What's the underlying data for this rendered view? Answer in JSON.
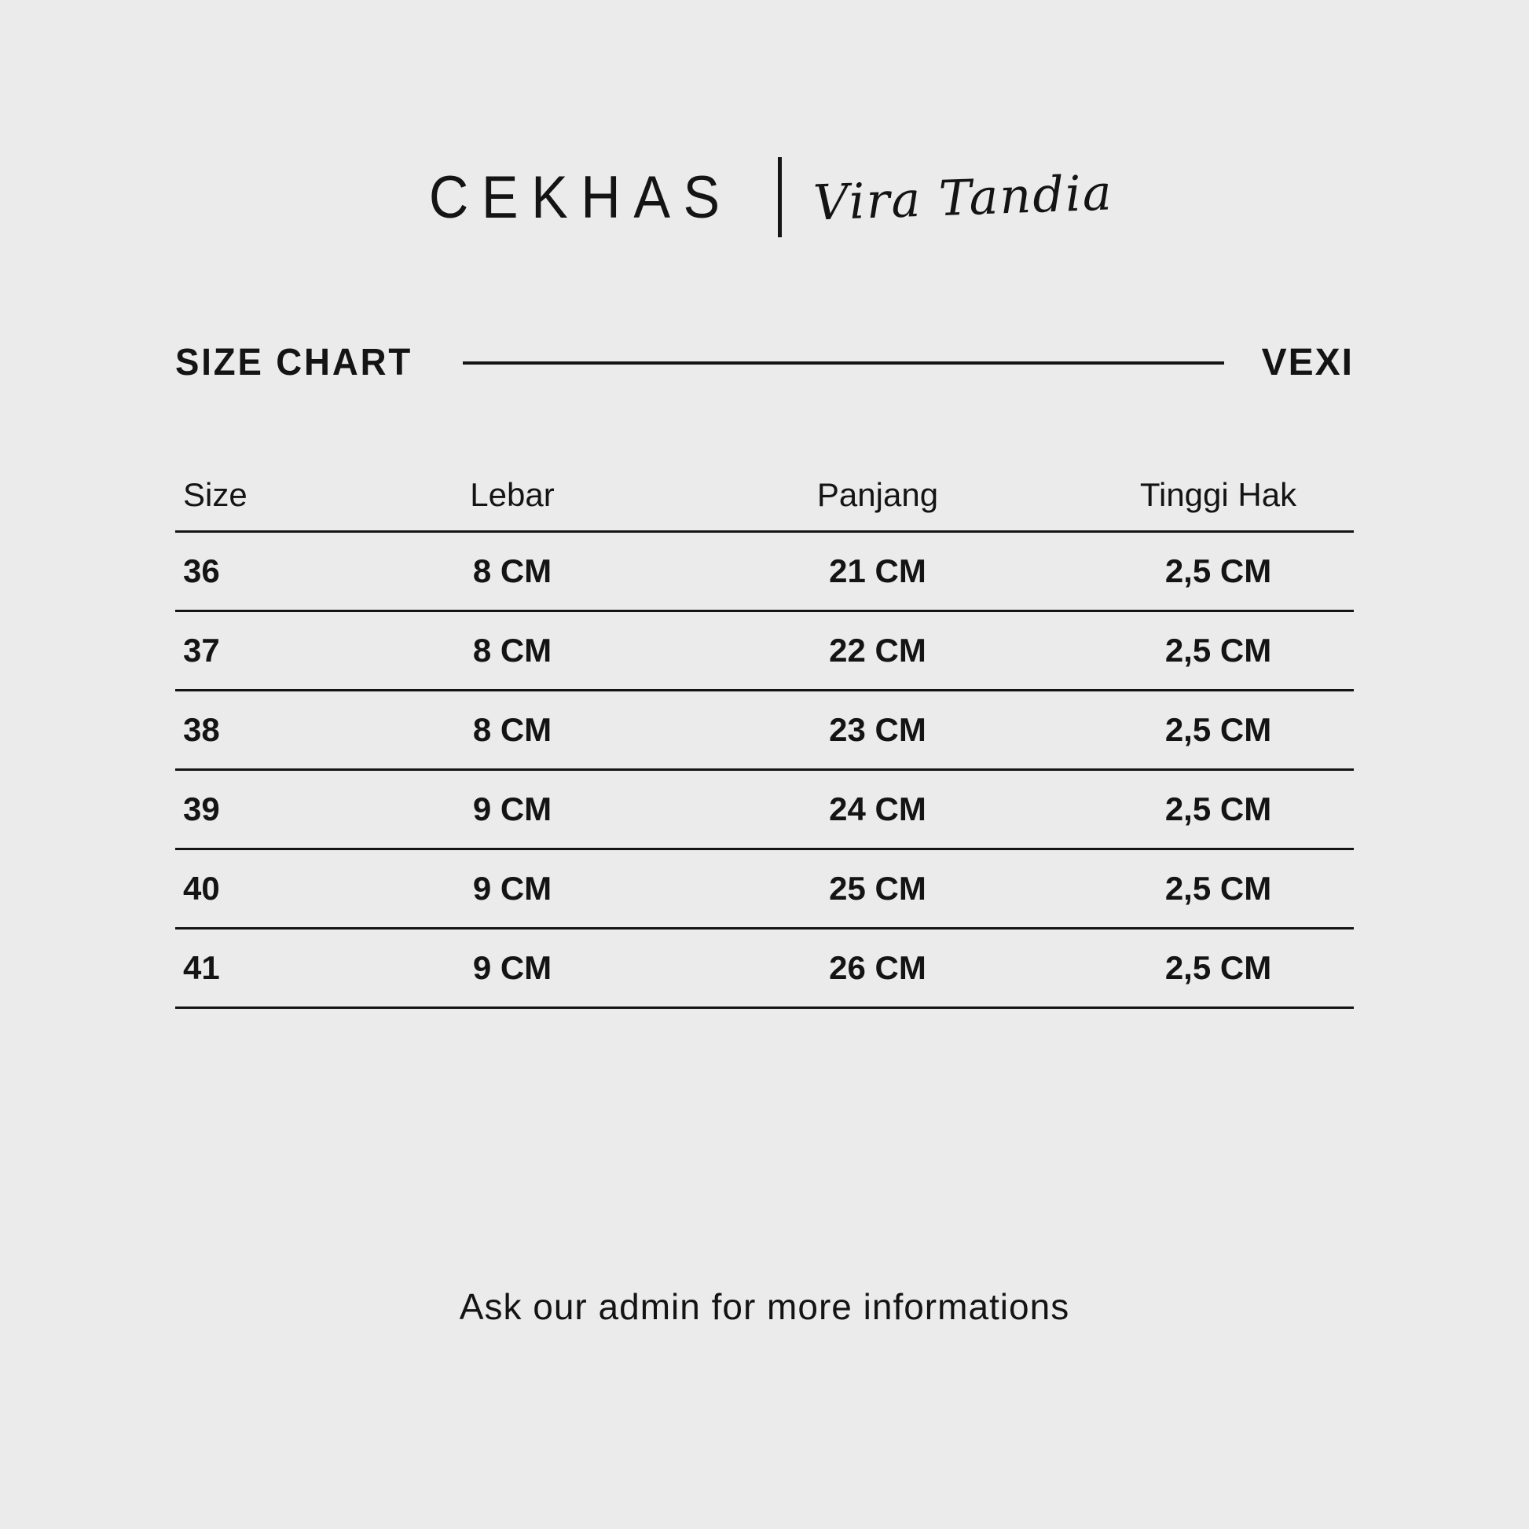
{
  "colors": {
    "background": "#ebebeb",
    "text": "#141414"
  },
  "brand": {
    "name": "CEKHAS",
    "signature": "Vira Tandia"
  },
  "section": {
    "title": "SIZE CHART",
    "product": "VEXI"
  },
  "table": {
    "headers": [
      "Size",
      "Lebar",
      "Panjang",
      "Tinggi Hak"
    ],
    "rows": [
      [
        "36",
        "8 CM",
        "21 CM",
        "2,5 CM"
      ],
      [
        "37",
        "8 CM",
        "22 CM",
        "2,5 CM"
      ],
      [
        "38",
        "8 CM",
        "23 CM",
        "2,5 CM"
      ],
      [
        "39",
        "9 CM",
        "24 CM",
        "2,5 CM"
      ],
      [
        "40",
        "9 CM",
        "25 CM",
        "2,5 CM"
      ],
      [
        "41",
        "9 CM",
        "26 CM",
        "2,5 CM"
      ]
    ]
  },
  "footer": {
    "note": "Ask our admin for more informations"
  },
  "chart_data": {
    "type": "table",
    "title": "SIZE CHART",
    "subtitle": "VEXI",
    "columns": [
      "Size",
      "Lebar",
      "Panjang",
      "Tinggi Hak"
    ],
    "rows": [
      [
        "36",
        "8 CM",
        "21 CM",
        "2,5 CM"
      ],
      [
        "37",
        "8 CM",
        "22 CM",
        "2,5 CM"
      ],
      [
        "38",
        "8 CM",
        "23 CM",
        "2,5 CM"
      ],
      [
        "39",
        "9 CM",
        "24 CM",
        "2,5 CM"
      ],
      [
        "40",
        "9 CM",
        "25 CM",
        "2,5 CM"
      ],
      [
        "41",
        "9 CM",
        "26 CM",
        "2,5 CM"
      ]
    ]
  }
}
